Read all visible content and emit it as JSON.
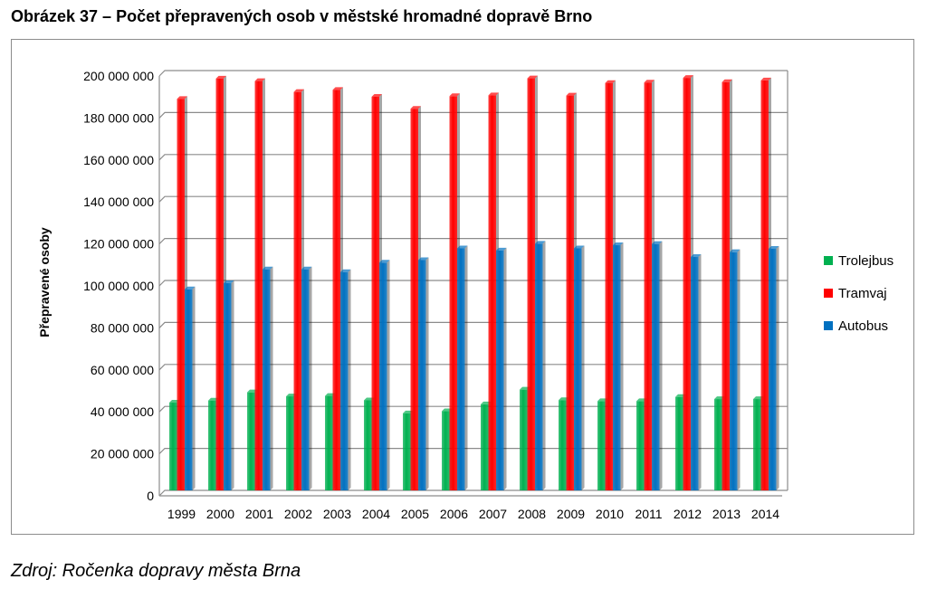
{
  "figure_title": "Obrázek 37 – Počet přepravených osob v městské hromadné dopravě Brno",
  "source_note": "Zdroj: Ročenka dopravy města Brna",
  "chart_data": {
    "type": "bar",
    "title": "",
    "xlabel": "",
    "ylabel": "Přepravené osoby",
    "ylim": [
      0,
      200000000
    ],
    "ytick_step": 20000000,
    "ytick_labels": [
      "0",
      "20 000 000",
      "40 000 000",
      "60 000 000",
      "80 000 000",
      "100 000 000",
      "120 000 000",
      "140 000 000",
      "160 000 000",
      "180 000 000",
      "200 000 000"
    ],
    "grid": true,
    "legend_position": "right",
    "categories": [
      "1999",
      "2000",
      "2001",
      "2002",
      "2003",
      "2004",
      "2005",
      "2006",
      "2007",
      "2008",
      "2009",
      "2010",
      "2011",
      "2012",
      "2013",
      "2014"
    ],
    "series": [
      {
        "name": "Trolejbus",
        "color": "#00b050",
        "values": [
          41800000,
          42800000,
          46700000,
          44800000,
          45000000,
          42900000,
          36700000,
          37700000,
          41000000,
          48000000,
          43000000,
          42500000,
          42500000,
          44500000,
          43500000,
          43500000
        ]
      },
      {
        "name": "Tramvaj",
        "color": "#ff0000",
        "values": [
          186500000,
          196200000,
          195000000,
          189800000,
          190800000,
          187500000,
          181800000,
          187800000,
          188200000,
          196300000,
          188100000,
          194100000,
          194300000,
          196500000,
          194500000,
          195300000
        ]
      },
      {
        "name": "Autobus",
        "color": "#0070c0",
        "values": [
          95800000,
          98700000,
          105300000,
          105300000,
          104000000,
          108500000,
          109700000,
          115300000,
          114300000,
          117500000,
          115300000,
          116800000,
          117400000,
          111200000,
          113500000,
          115100000
        ]
      }
    ]
  }
}
